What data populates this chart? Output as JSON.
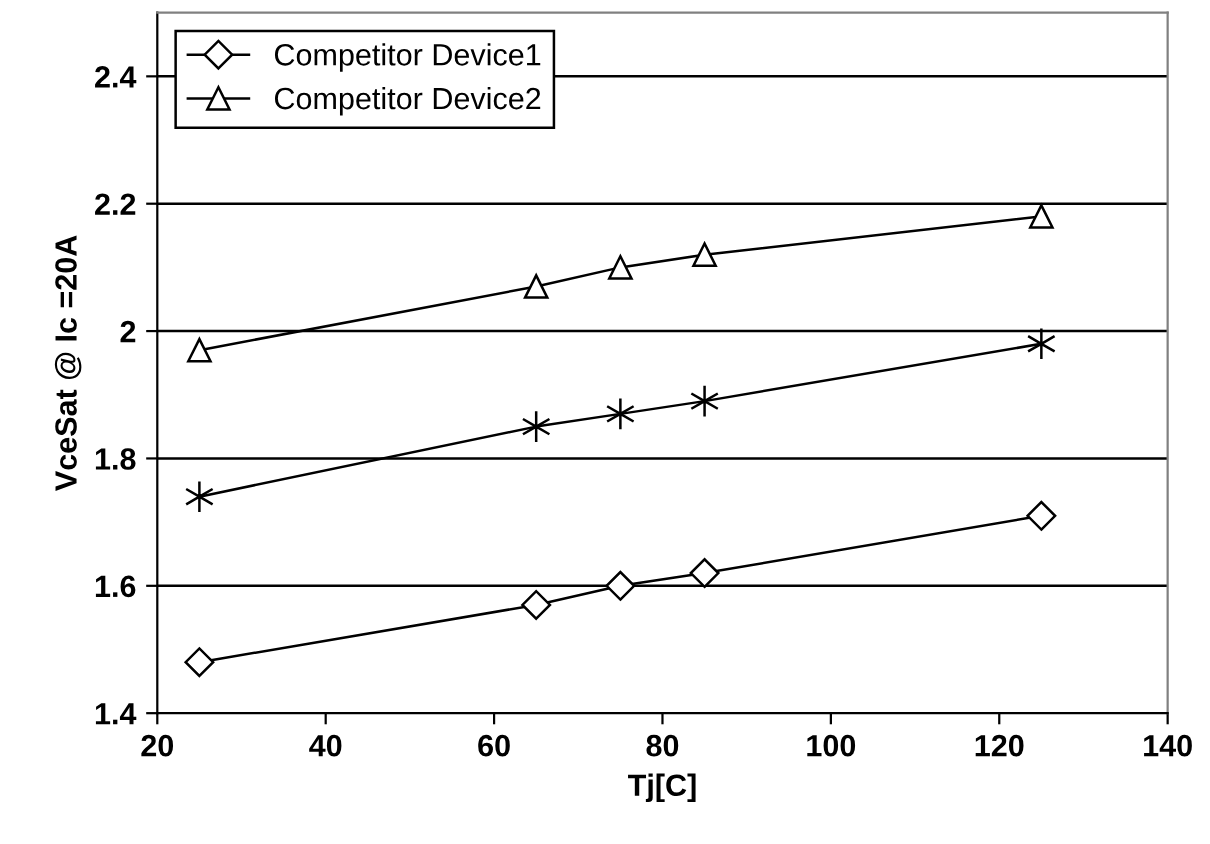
{
  "chart_data": {
    "type": "line",
    "xlabel": "Tj[C]",
    "ylabel": "VceSat @ Ic =20A",
    "x": [
      25,
      65,
      75,
      85,
      125
    ],
    "series": [
      {
        "color": "#000000",
        "marker": "cross",
        "values": [
          1.74,
          1.85,
          1.87,
          1.89,
          1.98
        ]
      },
      {
        "name": "Competitor Device1",
        "color": "#000000",
        "marker": "diamond",
        "values": [
          1.48,
          1.57,
          1.6,
          1.62,
          1.71
        ]
      },
      {
        "name": "Competitor Device2",
        "color": "#000000",
        "marker": "triangle",
        "values": [
          1.97,
          2.07,
          2.1,
          2.12,
          2.18
        ]
      }
    ],
    "xlim": [
      20,
      140
    ],
    "xticks": [
      20,
      40,
      60,
      80,
      100,
      120,
      140
    ],
    "ylim": [
      1.4,
      2.5
    ],
    "yticks": [
      1.4,
      1.6,
      1.8,
      2,
      2.2,
      2.4
    ],
    "grid": "y",
    "legend": "top left",
    "line_style": "solid"
  }
}
